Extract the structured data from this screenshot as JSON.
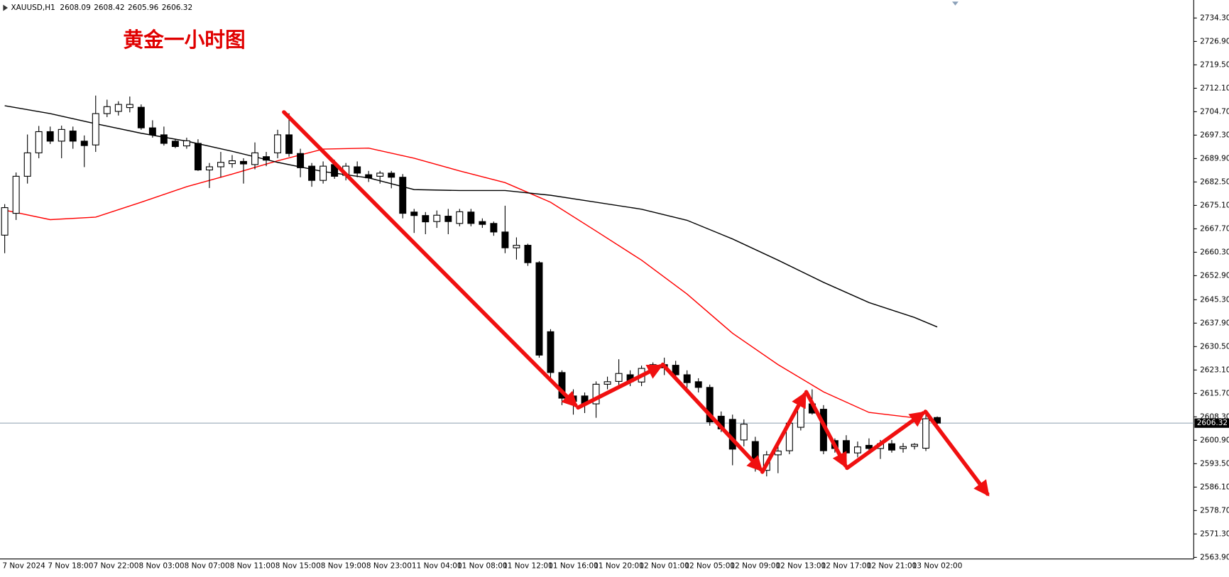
{
  "chart_data": {
    "type": "candlestick",
    "title": "黄金一小时图",
    "symbol": "XAUUSD,H1",
    "categories": [
      "7 Nov 2024",
      null,
      null,
      null,
      "7 Nov 18:00",
      null,
      null,
      null,
      "7 Nov 22:00",
      null,
      null,
      null,
      "8 Nov 03:00",
      null,
      null,
      null,
      "8 Nov 07:00",
      null,
      null,
      null,
      "8 Nov 11:00",
      null,
      null,
      null,
      "8 Nov 15:00",
      null,
      null,
      null,
      "8 Nov 19:00",
      null,
      null,
      null,
      "8 Nov 23:00",
      null,
      null,
      null,
      "11 Nov 04:00",
      null,
      null,
      null,
      "11 Nov 08:00",
      null,
      null,
      null,
      "11 Nov 12:00",
      null,
      null,
      null,
      "11 Nov 16:00",
      null,
      null,
      null,
      "11 Nov 20:00",
      null,
      null,
      null,
      "12 Nov 01:00",
      null,
      null,
      null,
      "12 Nov 05:00",
      null,
      null,
      null,
      "12 Nov 09:00",
      null,
      null,
      null,
      "12 Nov 13:00",
      null,
      null,
      null,
      "12 Nov 17:00",
      null,
      null,
      null,
      "12 Nov 21:00",
      null,
      null,
      null,
      "13 Nov 02:00",
      null,
      null
    ],
    "open": [
      2665.7,
      2672.6,
      2684.3,
      2691.7,
      2698.4,
      2695.4,
      2698.6,
      2695.4,
      2694.2,
      2704.1,
      2704.8,
      2706.0,
      2706.1,
      2699.6,
      2697.4,
      2695.4,
      2693.9,
      2694.7,
      2686.3,
      2687.3,
      2688.3,
      2689.0,
      2688.0,
      2690.5,
      2691.7,
      2697.4,
      2691.5,
      2687.5,
      2683.0,
      2688.0,
      2684.6,
      2687.3,
      2684.8,
      2684.3,
      2685.3,
      2684.0,
      2673.0,
      2671.9,
      2670.0,
      2671.7,
      2669.4,
      2673.0,
      2670.0,
      2669.4,
      2666.7,
      2661.7,
      2662.5,
      2657.0,
      2635.2,
      2622.3,
      2614.9,
      2614.9,
      2612.4,
      2618.6,
      2619.5,
      2621.6,
      2619.3,
      2622.3,
      2624.8,
      2624.6,
      2621.6,
      2619.4,
      2617.6,
      2608.5,
      2607.5,
      2601.0,
      2600.5,
      2591.4,
      2596.3,
      2597.6,
      2605.0,
      2612.4,
      2610.7,
      2600.8,
      2600.8,
      2596.9,
      2599.3,
      2598.3,
      2599.8,
      2598.3,
      2599.0,
      2598.4,
      2608.09
    ],
    "high": [
      2675.5,
      2685.5,
      2697.5,
      2700.2,
      2700.0,
      2700.3,
      2700.0,
      2697.2,
      2709.8,
      2708.5,
      2708.0,
      2709.5,
      2707.0,
      2702.0,
      2700.0,
      2696.0,
      2696.5,
      2696.0,
      2688.5,
      2692.0,
      2691.0,
      2690.0,
      2695.0,
      2692.0,
      2699.0,
      2704.2,
      2693.0,
      2688.5,
      2689.0,
      2689.5,
      2688.5,
      2689.0,
      2686.0,
      2686.0,
      2686.0,
      2685.0,
      2674.0,
      2673.0,
      2673.5,
      2674.0,
      2674.0,
      2674.0,
      2671.0,
      2670.0,
      2675.0,
      2665.0,
      2663.0,
      2657.5,
      2636.0,
      2623.0,
      2617.0,
      2616.0,
      2619.5,
      2621.0,
      2626.5,
      2623.0,
      2624.5,
      2625.5,
      2627.0,
      2626.0,
      2623.0,
      2620.5,
      2618.5,
      2610.0,
      2609.0,
      2607.5,
      2602.0,
      2597.5,
      2599.0,
      2607.5,
      2613.0,
      2617.0,
      2612.0,
      2601.5,
      2602.5,
      2600.5,
      2601.5,
      2601.0,
      2601.0,
      2600.0,
      2600.0,
      2610.0,
      2608.42
    ],
    "low": [
      2660.0,
      2670.5,
      2682.0,
      2690.0,
      2694.5,
      2690.0,
      2693.0,
      2687.2,
      2692.0,
      2703.0,
      2703.5,
      2704.5,
      2699.0,
      2696.5,
      2694.0,
      2693.2,
      2693.0,
      2686.0,
      2680.6,
      2684.0,
      2687.0,
      2682.0,
      2686.5,
      2687.5,
      2690.0,
      2690.5,
      2684.0,
      2681.0,
      2682.0,
      2683.5,
      2683.0,
      2684.0,
      2682.5,
      2682.0,
      2680.5,
      2671.0,
      2666.4,
      2666.0,
      2668.0,
      2666.0,
      2668.5,
      2668.5,
      2668.0,
      2665.5,
      2660.0,
      2658.0,
      2656.0,
      2627.0,
      2620.0,
      2612.0,
      2609.0,
      2609.5,
      2608.0,
      2617.0,
      2618.0,
      2618.0,
      2618.0,
      2621.0,
      2621.5,
      2620.0,
      2617.5,
      2616.0,
      2605.5,
      2603.5,
      2593.0,
      2599.0,
      2591.0,
      2589.5,
      2590.5,
      2596.5,
      2604.0,
      2609.0,
      2596.5,
      2597.0,
      2595.0,
      2595.5,
      2597.0,
      2595.0,
      2597.0,
      2597.0,
      2598.0,
      2597.5,
      2605.96
    ],
    "close": [
      2674.4,
      2684.3,
      2691.7,
      2698.4,
      2695.4,
      2699.1,
      2695.4,
      2694.0,
      2704.1,
      2706.3,
      2707.0,
      2707.0,
      2699.6,
      2697.4,
      2694.7,
      2693.7,
      2695.5,
      2686.3,
      2687.3,
      2688.7,
      2689.2,
      2688.2,
      2691.7,
      2689.4,
      2697.4,
      2691.5,
      2687.0,
      2683.0,
      2687.5,
      2684.3,
      2687.5,
      2685.3,
      2683.8,
      2685.3,
      2684.0,
      2672.6,
      2671.9,
      2669.9,
      2672.0,
      2670.0,
      2673.1,
      2669.4,
      2669.1,
      2666.7,
      2661.7,
      2662.5,
      2657.0,
      2627.8,
      2622.3,
      2614.2,
      2613.2,
      2612.4,
      2618.6,
      2619.4,
      2622.0,
      2619.4,
      2623.6,
      2624.8,
      2623.8,
      2621.6,
      2619.1,
      2617.6,
      2606.7,
      2604.5,
      2598.1,
      2606.0,
      2593.9,
      2596.3,
      2597.5,
      2606.3,
      2612.4,
      2609.5,
      2597.6,
      2598.3,
      2596.9,
      2598.8,
      2598.3,
      2599.8,
      2597.8,
      2598.9,
      2599.6,
      2607.7,
      2606.32
    ],
    "up_color": "#ffffff",
    "down_color": "#000000",
    "lines": [
      {
        "color": "#ff0000",
        "x": [
          0,
          4,
          8,
          12,
          16,
          20,
          24,
          28,
          32,
          36,
          40,
          44,
          48,
          52,
          56,
          60,
          64,
          68,
          72,
          76,
          80,
          82
        ],
        "values": [
          2673.6,
          2670.6,
          2671.4,
          2676.1,
          2681.0,
          2685.0,
          2689.2,
          2692.9,
          2693.2,
          2690.0,
          2686.0,
          2682.3,
          2676.1,
          2667.0,
          2657.8,
          2647.1,
          2634.7,
          2624.8,
          2616.2,
          2609.7,
          2608.0,
          2606.7
        ]
      },
      {
        "color": "#000000",
        "x": [
          0,
          4,
          8,
          12,
          16,
          20,
          24,
          28,
          32,
          36,
          40,
          44,
          48,
          52,
          56,
          60,
          64,
          68,
          72,
          76,
          80,
          82
        ],
        "values": [
          2706.6,
          2704.1,
          2700.9,
          2697.9,
          2695.4,
          2692.2,
          2688.7,
          2685.8,
          2683.8,
          2680.1,
          2679.8,
          2679.8,
          2678.3,
          2676.1,
          2673.9,
          2670.4,
          2664.5,
          2657.8,
          2650.8,
          2644.4,
          2639.7,
          2636.7
        ]
      }
    ],
    "ylim": [
      2563.4,
      2739.25
    ],
    "yticks": [
      {
        "value": 2734.3,
        "label": "2734.30"
      },
      {
        "value": 2726.9,
        "label": "2726.90"
      },
      {
        "value": 2719.5,
        "label": "2719.50"
      },
      {
        "value": 2712.1,
        "label": "2712.10"
      },
      {
        "value": 2704.7,
        "label": "2704.70"
      },
      {
        "value": 2697.3,
        "label": "2697.30"
      },
      {
        "value": 2689.9,
        "label": "2689.90"
      },
      {
        "value": 2682.5,
        "label": "2682.50"
      },
      {
        "value": 2675.1,
        "label": "2675.10"
      },
      {
        "value": 2667.7,
        "label": "2667.70"
      },
      {
        "value": 2660.3,
        "label": "2660.30"
      },
      {
        "value": 2652.9,
        "label": "2652.90"
      },
      {
        "value": 2645.3,
        "label": "2645.30"
      },
      {
        "value": 2637.9,
        "label": "2637.90"
      },
      {
        "value": 2630.5,
        "label": "2630.50"
      },
      {
        "value": 2623.1,
        "label": "2623.10"
      },
      {
        "value": 2615.7,
        "label": "2615.70"
      },
      {
        "value": 2608.3,
        "label": "2608.30"
      },
      {
        "value": 2600.9,
        "label": "2600.90"
      },
      {
        "value": 2593.5,
        "label": "2593.50"
      },
      {
        "value": 2586.1,
        "label": "2586.10"
      },
      {
        "value": 2578.7,
        "label": "2578.70"
      },
      {
        "value": 2571.3,
        "label": "2571.30"
      },
      {
        "value": 2563.9,
        "label": "2563.90"
      }
    ],
    "grid": false
  }
}
